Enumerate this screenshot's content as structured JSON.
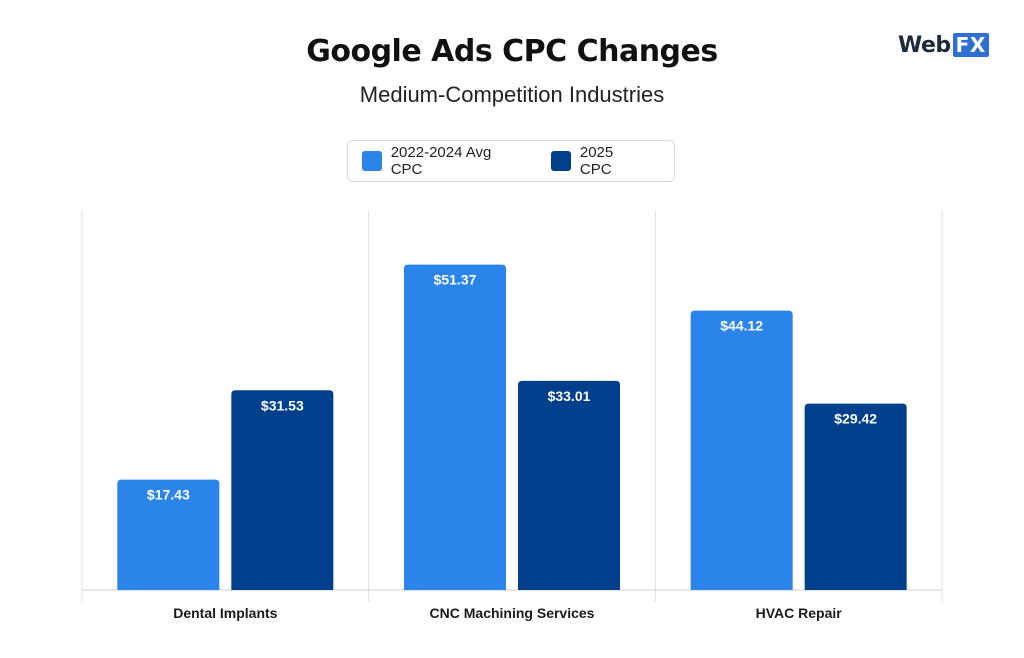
{
  "header": {
    "title": "Google Ads CPC Changes",
    "subtitle": "Medium-Competition Industries"
  },
  "logo": {
    "part1": "Web",
    "part2": "FX"
  },
  "colors": {
    "series1": "#2b84ea",
    "series2": "#003f8c"
  },
  "chart_data": {
    "type": "bar",
    "title": "Google Ads CPC Changes",
    "subtitle": "Medium-Competition Industries",
    "categories": [
      "Dental Implants",
      "CNC Machining Services",
      "HVAC Repair"
    ],
    "series": [
      {
        "name": "2022-2024 Avg CPC",
        "values": [
          17.43,
          51.37,
          44.12
        ],
        "labels": [
          "$17.43",
          "$51.37",
          "$44.12"
        ]
      },
      {
        "name": "2025 CPC",
        "values": [
          31.53,
          33.01,
          29.42
        ],
        "labels": [
          "$31.53",
          "$33.01",
          "$29.42"
        ]
      }
    ],
    "xlabel": "",
    "ylabel": "",
    "ylim": [
      0,
      60
    ],
    "grid": "vertical separators between categories",
    "legend_position": "top-center"
  }
}
